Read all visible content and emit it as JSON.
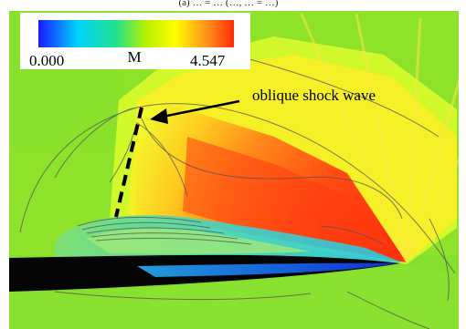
{
  "header_fragment": "(a) … = … (…, … = …)",
  "colorbar": {
    "min_label": "0.000",
    "variable_label": "M",
    "max_label": "4.547",
    "min_value": 0.0,
    "max_value": 4.547,
    "colors": [
      "#1a1aff",
      "#00d2ff",
      "#22e38c",
      "#b6f000",
      "#ffff00",
      "#ff9a1a",
      "#ff2a0a"
    ]
  },
  "annotation": {
    "label": "oblique shock wave"
  },
  "colors": {
    "freestream": "#8ee32a",
    "shock_region": "#ff4a12",
    "body": "#050505",
    "contour_lines": "#555555"
  }
}
